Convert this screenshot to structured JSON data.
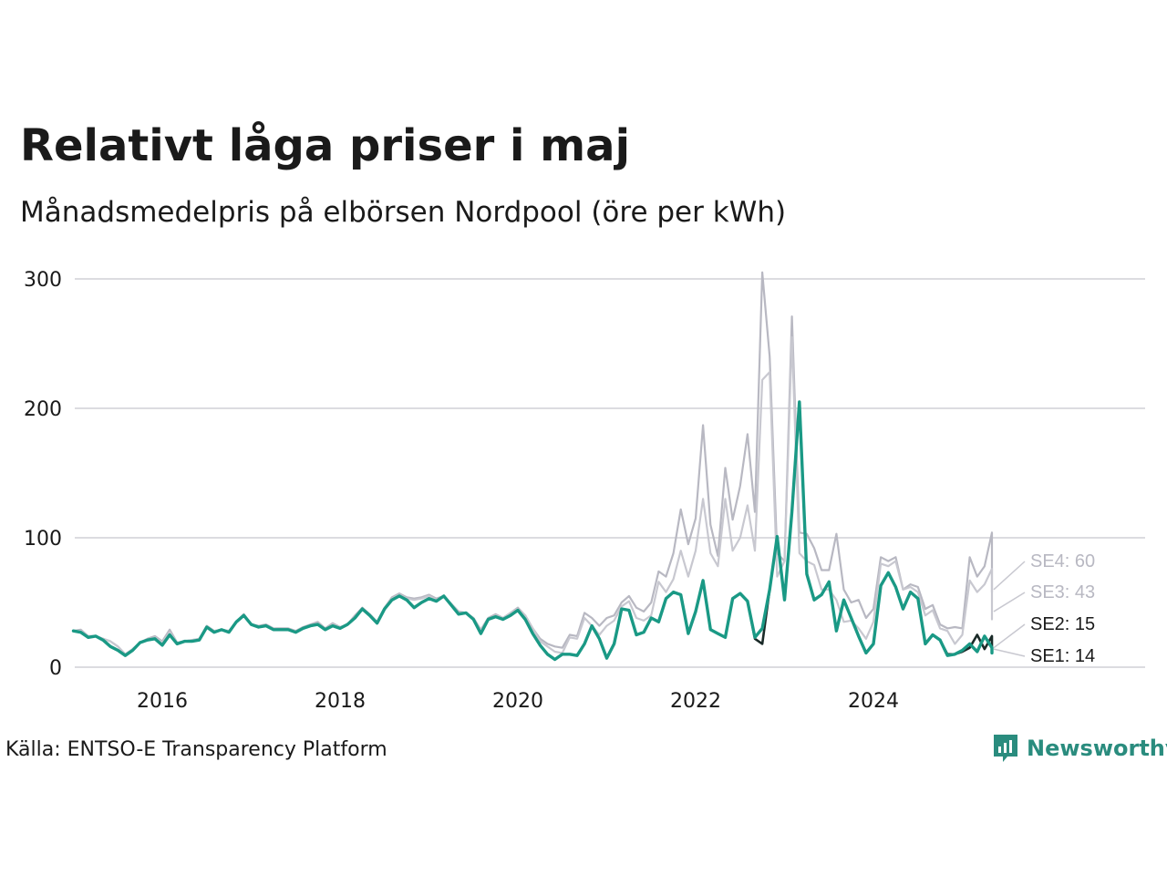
{
  "title": "Relativt låga priser i maj",
  "subtitle": "Månadsmedelpris på elbörsen Nordpool (öre per kWh)",
  "source": "Källa: ENTSO-E Transparency Platform",
  "logo": {
    "text": "Newsworthy",
    "icon": "chart-bubble-icon"
  },
  "colors": {
    "SE1": "#1a9985",
    "SE2": "#1a2a28",
    "SE3": "#c4c4cc",
    "SE4": "#b8b8c2",
    "grid": "#dcdce0"
  },
  "chart_data": {
    "type": "line",
    "title": "Relativt låga priser i maj",
    "xlabel": "",
    "ylabel": "",
    "xlim": [
      2015.0,
      2026.1
    ],
    "ylim": [
      0,
      310
    ],
    "x_start": "2015-01",
    "x_step": "month",
    "x_ticks": [
      {
        "value": 2016,
        "label": "2016"
      },
      {
        "value": 2018,
        "label": "2018"
      },
      {
        "value": 2020,
        "label": "2020"
      },
      {
        "value": 2022,
        "label": "2022"
      },
      {
        "value": 2024,
        "label": "2024"
      }
    ],
    "y_ticks": [
      {
        "value": 0,
        "label": "0"
      },
      {
        "value": 100,
        "label": "100"
      },
      {
        "value": 200,
        "label": "200"
      },
      {
        "value": 300,
        "label": "300"
      }
    ],
    "grid": true,
    "series": [
      {
        "name": "SE4",
        "end_label": "SE4: 60",
        "color": "#b8b8c2",
        "values": [
          28,
          29,
          24,
          24,
          22,
          20,
          16,
          10,
          14,
          19,
          22,
          24,
          20,
          29,
          19,
          20,
          21,
          22,
          32,
          28,
          29,
          28,
          35,
          41,
          33,
          32,
          33,
          30,
          30,
          30,
          28,
          31,
          33,
          35,
          30,
          34,
          31,
          33,
          40,
          46,
          41,
          35,
          46,
          54,
          57,
          54,
          53,
          54,
          56,
          53,
          55,
          49,
          43,
          42,
          38,
          29,
          38,
          41,
          38,
          42,
          46,
          40,
          30,
          22,
          18,
          16,
          15,
          25,
          24,
          42,
          38,
          32,
          38,
          40,
          50,
          55,
          46,
          43,
          50,
          74,
          70,
          88,
          122,
          95,
          115,
          187,
          110,
          86,
          154,
          114,
          140,
          180,
          120,
          305,
          240,
          88,
          82,
          271,
          104,
          103,
          92,
          75,
          75,
          103,
          60,
          50,
          52,
          38,
          45,
          85,
          82,
          85,
          60,
          64,
          62,
          45,
          48,
          33,
          30,
          31,
          30,
          85,
          70,
          78,
          104,
          62,
          58,
          60
        ]
      },
      {
        "name": "SE3",
        "end_label": "SE3: 43",
        "color": "#c8c8d0",
        "values": [
          28,
          28,
          24,
          24,
          22,
          20,
          16,
          10,
          14,
          19,
          21,
          23,
          19,
          27,
          19,
          20,
          21,
          22,
          32,
          28,
          29,
          28,
          35,
          41,
          33,
          32,
          32,
          30,
          29,
          29,
          27,
          30,
          32,
          34,
          29,
          33,
          31,
          33,
          39,
          45,
          40,
          35,
          46,
          53,
          56,
          53,
          52,
          53,
          55,
          52,
          55,
          49,
          42,
          42,
          38,
          28,
          37,
          40,
          38,
          42,
          45,
          40,
          30,
          20,
          16,
          12,
          11,
          23,
          22,
          38,
          32,
          25,
          32,
          36,
          47,
          51,
          38,
          36,
          40,
          66,
          58,
          68,
          90,
          70,
          90,
          130,
          88,
          78,
          130,
          90,
          100,
          125,
          90,
          222,
          228,
          70,
          82,
          255,
          88,
          82,
          79,
          60,
          60,
          52,
          35,
          36,
          30,
          22,
          35,
          80,
          78,
          82,
          60,
          62,
          58,
          40,
          44,
          30,
          28,
          18,
          25,
          67,
          58,
          64,
          76,
          45,
          37,
          43
        ]
      },
      {
        "name": "SE2",
        "end_label": "SE2: 15",
        "color": "#1a2a28",
        "values": [
          28,
          27,
          23,
          24,
          21,
          16,
          13,
          9,
          13,
          19,
          21,
          22,
          17,
          25,
          18,
          20,
          20,
          21,
          31,
          27,
          29,
          27,
          35,
          40,
          33,
          31,
          32,
          29,
          29,
          29,
          27,
          30,
          32,
          33,
          29,
          32,
          30,
          33,
          38,
          45,
          40,
          34,
          45,
          52,
          55,
          52,
          46,
          50,
          53,
          51,
          55,
          48,
          41,
          42,
          37,
          26,
          37,
          39,
          37,
          40,
          44,
          37,
          26,
          17,
          10,
          6,
          10,
          10,
          9,
          18,
          32,
          22,
          7,
          18,
          45,
          44,
          25,
          27,
          38,
          35,
          53,
          58,
          56,
          26,
          43,
          67,
          29,
          26,
          23,
          53,
          57,
          51,
          22,
          18,
          60,
          101,
          52,
          120,
          205,
          72,
          52,
          56,
          66,
          28,
          52,
          38,
          24,
          11,
          18,
          63,
          73,
          62,
          45,
          58,
          53,
          18,
          25,
          21,
          10,
          10,
          12,
          15,
          25,
          14,
          24,
          17,
          14,
          15
        ]
      },
      {
        "name": "SE1",
        "end_label": "SE1: 14",
        "color": "#1a9985",
        "values": [
          28,
          27,
          23,
          24,
          21,
          16,
          13,
          9,
          13,
          19,
          21,
          22,
          17,
          25,
          18,
          20,
          20,
          21,
          31,
          27,
          29,
          27,
          35,
          40,
          33,
          31,
          32,
          29,
          29,
          29,
          27,
          30,
          32,
          33,
          29,
          32,
          30,
          33,
          38,
          45,
          40,
          34,
          45,
          52,
          55,
          52,
          46,
          50,
          53,
          51,
          55,
          48,
          41,
          42,
          37,
          26,
          37,
          39,
          37,
          40,
          44,
          37,
          26,
          17,
          10,
          6,
          10,
          10,
          9,
          18,
          32,
          22,
          7,
          18,
          45,
          44,
          25,
          27,
          38,
          35,
          53,
          58,
          56,
          26,
          43,
          67,
          29,
          26,
          23,
          53,
          57,
          51,
          23,
          30,
          60,
          101,
          52,
          120,
          205,
          72,
          52,
          56,
          66,
          28,
          52,
          38,
          24,
          11,
          18,
          63,
          73,
          62,
          45,
          58,
          53,
          18,
          25,
          21,
          9,
          10,
          13,
          18,
          12,
          24,
          15,
          11,
          14,
          14
        ]
      }
    ]
  }
}
